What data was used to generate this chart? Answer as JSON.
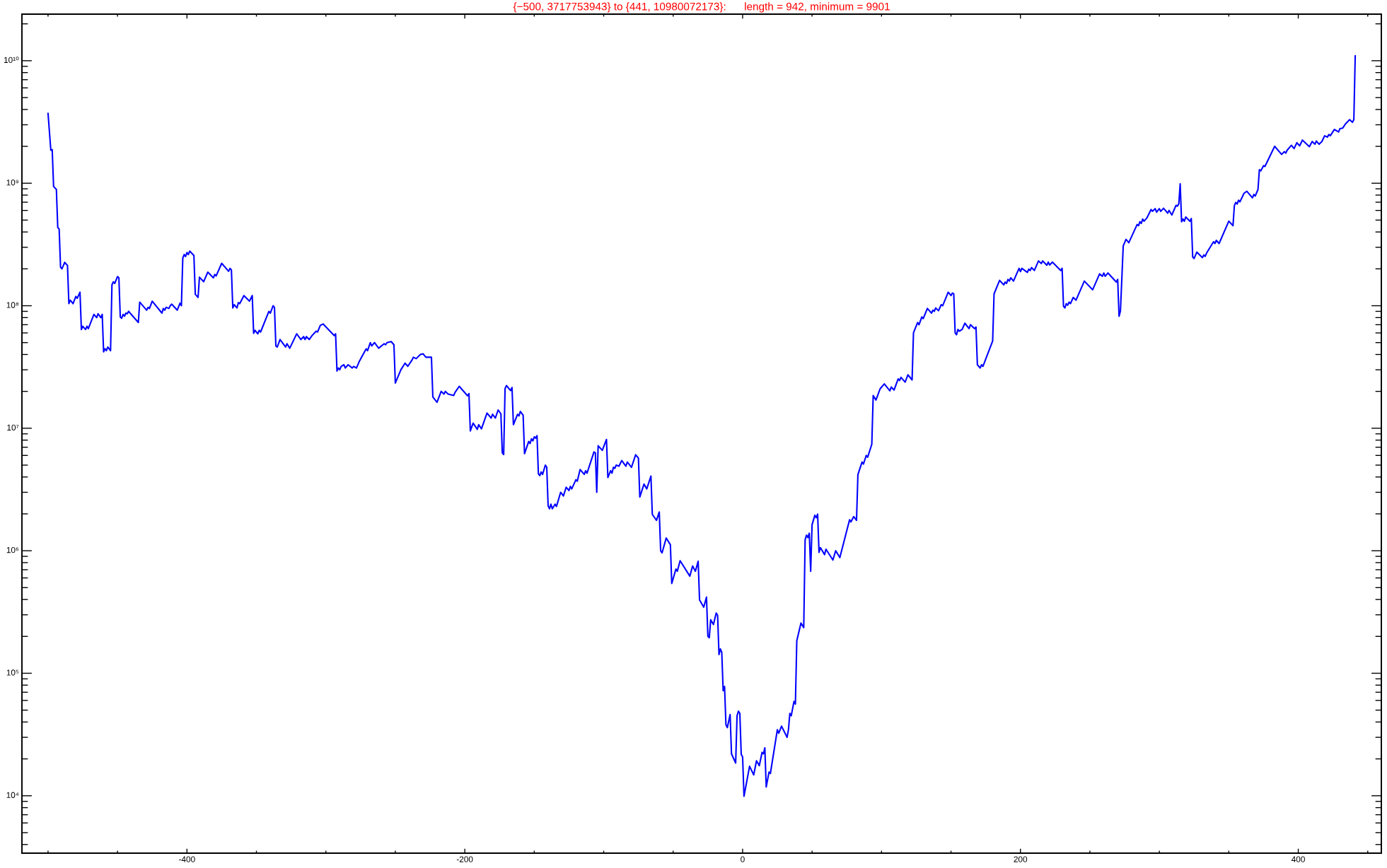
{
  "chart_data": {
    "type": "line",
    "title": "{−500, 3717753943} to {441, 10980072173}:      length = 942, minimum = 9901",
    "x": [
      -500,
      -498,
      -497,
      -496,
      -494,
      -493,
      -492,
      -491,
      -490,
      -488,
      -486,
      -485,
      -484,
      -482,
      -480,
      -479,
      -477,
      -476,
      -475,
      -473,
      -472,
      -471,
      -467,
      -465,
      -464,
      -462,
      -461,
      -460,
      -459,
      -458,
      -457,
      -455,
      -454,
      -453,
      -452,
      -450,
      -449,
      -448,
      -447,
      -446,
      -445,
      -444,
      -443,
      -442,
      -435,
      -434,
      -429,
      -428,
      -427,
      -425,
      -418,
      -417,
      -416,
      -415,
      -413,
      -412,
      -411,
      -407,
      -405,
      -404,
      -403,
      -402,
      -401,
      -400,
      -399,
      -398,
      -395,
      -394,
      -392,
      -391,
      -388,
      -385,
      -381,
      -380,
      -379,
      -375,
      -370,
      -369,
      -368,
      -367,
      -366,
      -364,
      -363,
      -362,
      -359,
      -355,
      -353,
      -352,
      -351,
      -349,
      -348,
      -347,
      -341,
      -340,
      -338,
      -337,
      -336,
      -335,
      -333,
      -329,
      -328,
      -326,
      -321,
      -318,
      -316,
      -315,
      -314,
      -312,
      -310,
      -307,
      -306,
      -304,
      -302,
      -294,
      -293,
      -292,
      -291,
      -290,
      -289,
      -287,
      -286,
      -284,
      -281,
      -280,
      -278,
      -276,
      -271,
      -270,
      -268,
      -267,
      -265,
      -262,
      -258,
      -257,
      -256,
      -253,
      -251,
      -250,
      -246,
      -243,
      -241,
      -238,
      -237,
      -235,
      -232,
      -230,
      -228,
      -224,
      -223,
      -220,
      -217,
      -215,
      -214,
      -212,
      -208,
      -207,
      -204,
      -198,
      -197,
      -196,
      -194,
      -191,
      -190,
      -188,
      -184,
      -181,
      -180,
      -178,
      -176,
      -174,
      -173,
      -172,
      -171,
      -170,
      -167,
      -166,
      -165,
      -162,
      -161,
      -160,
      -158,
      -157,
      -154,
      -153,
      -152,
      -151,
      -150,
      -149,
      -148,
      -147,
      -146,
      -145,
      -144,
      -142,
      -141,
      -140,
      -139,
      -138,
      -137,
      -135,
      -134,
      -131,
      -129,
      -127,
      -125,
      -124,
      -123,
      -120,
      -119,
      -117,
      -114,
      -113,
      -112,
      -107,
      -106,
      -105,
      -104,
      -101,
      -98,
      -97,
      -95,
      -94,
      -93,
      -92,
      -91,
      -89,
      -87,
      -84,
      -83,
      -80,
      -77,
      -75,
      -74,
      -71,
      -69,
      -66,
      -65,
      -62,
      -60,
      -59,
      -58,
      -55,
      -52,
      -51,
      -48,
      -47,
      -45,
      -38,
      -36,
      -34,
      -32,
      -31,
      -28,
      -26,
      -25,
      -24,
      -23,
      -21,
      -19,
      -18,
      -17,
      -16,
      -15,
      -14,
      -13,
      -12,
      -11,
      -9,
      -8,
      -5,
      -4,
      -3,
      -2,
      -1,
      0,
      1,
      5,
      8,
      10,
      12,
      14,
      15,
      16,
      17,
      19,
      20,
      25,
      26,
      28,
      32,
      33,
      34,
      35,
      37,
      38,
      39,
      42,
      44,
      45,
      46,
      47,
      48,
      49,
      50,
      52,
      53,
      54,
      55,
      56,
      59,
      60,
      65,
      67,
      70,
      77,
      78,
      80,
      82,
      83,
      86,
      87,
      89,
      90,
      93,
      94,
      96,
      99,
      102,
      106,
      107,
      109,
      112,
      113,
      114,
      117,
      119,
      122,
      123,
      126,
      127,
      129,
      130,
      133,
      136,
      137,
      138,
      139,
      141,
      143,
      144,
      148,
      150,
      151,
      152,
      153,
      154,
      155,
      156,
      158,
      160,
      163,
      164,
      167,
      168,
      169,
      171,
      172,
      173,
      180,
      181,
      185,
      188,
      189,
      190,
      191,
      192,
      193,
      195,
      199,
      200,
      201,
      205,
      206,
      207,
      208,
      210,
      213,
      215,
      216,
      219,
      220,
      221,
      223,
      229,
      230,
      231,
      232,
      233,
      234,
      235,
      236,
      238,
      240,
      246,
      252,
      257,
      259,
      260,
      261,
      263,
      269,
      270,
      271,
      272,
      274,
      276,
      278,
      284,
      285,
      286,
      287,
      288,
      289,
      291,
      294,
      295,
      297,
      298,
      300,
      301,
      303,
      306,
      307,
      309,
      312,
      313,
      314,
      315,
      316,
      317,
      318,
      319,
      322,
      323,
      324,
      325,
      327,
      331,
      332,
      333,
      334,
      339,
      340,
      341,
      343,
      350,
      353,
      354,
      355,
      356,
      357,
      358,
      361,
      363,
      367,
      368,
      369,
      371,
      372,
      373,
      375,
      376,
      383,
      388,
      390,
      391,
      392,
      395,
      397,
      399,
      401,
      403,
      408,
      410,
      412,
      413,
      415,
      417,
      419,
      421,
      422,
      423,
      426,
      429,
      430,
      432,
      434,
      437,
      439,
      440,
      441
    ],
    "values": [
      3717753943,
      1860000000.0,
      1880000000.0,
      940000000.0,
      890000000.0,
      435000000.0,
      423000000.0,
      207000000.0,
      200000000.0,
      226000000.0,
      213000000.0,
      104000000.0,
      111000000.0,
      104000000.0,
      119000000.0,
      115000000.0,
      129000000.0,
      64000000.0,
      68000000.0,
      64000000.0,
      68000000.0,
      65000000.0,
      85000000.0,
      80000000.0,
      86000000.0,
      80000000.0,
      85000000.0,
      42000000.0,
      44600000.0,
      43000000.0,
      46000000.0,
      43000000.0,
      148000000.0,
      157000000.0,
      152000000.0,
      173000000.0,
      169000000.0,
      81000000.0,
      79000000.0,
      85000000.0,
      82000000.0,
      87000000.0,
      86000000.0,
      90000000.0,
      73000000.0,
      107000000.0,
      92000000.0,
      97000000.0,
      95000000.0,
      109000000.0,
      87000000.0,
      95000000.0,
      92000000.0,
      97000000.0,
      95000000.0,
      100000000.0,
      103000000.0,
      92000000.0,
      105000000.0,
      100000000.0,
      245000000.0,
      262000000.0,
      252000000.0,
      272000000.0,
      262000000.0,
      279000000.0,
      257000000.0,
      124000000.0,
      117000000.0,
      171000000.0,
      157000000.0,
      188000000.0,
      169000000.0,
      180000000.0,
      175000000.0,
      222000000.0,
      191000000.0,
      202000000.0,
      196000000.0,
      96000000.0,
      102000000.0,
      96000000.0,
      106000000.0,
      104000000.0,
      121000000.0,
      109000000.0,
      121000000.0,
      59600000.0,
      63000000.0,
      59000000.0,
      63000000.0,
      61000000.0,
      90000000.0,
      87000000.0,
      100000000.0,
      97000000.0,
      47000000.0,
      46000000.0,
      53000000.0,
      46000000.0,
      49000000.0,
      45000000.0,
      59000000.0,
      53000000.0,
      56000000.0,
      53000000.0,
      56000000.0,
      53000000.0,
      57000000.0,
      62000000.0,
      61000000.0,
      69000000.0,
      71000000.0,
      57000000.0,
      59000000.0,
      29300000.0,
      31000000.0,
      30000000.0,
      32000000.0,
      33000000.0,
      31000000.0,
      33000000.0,
      31000000.0,
      32000000.0,
      31000000.0,
      35000000.0,
      44500000.0,
      43000000.0,
      50000000.0,
      47000000.0,
      50000000.0,
      45000000.0,
      49000000.0,
      48000000.0,
      50000000.0,
      51000000.0,
      48000000.0,
      23400000.0,
      30000000.0,
      34000000.0,
      32000000.0,
      36000000.0,
      38000000.0,
      37000000.0,
      40000000.0,
      40500000.0,
      38000000.0,
      38000000.0,
      18000000.0,
      16300000.0,
      20000000.0,
      19000000.0,
      20000000.0,
      19000000.0,
      18500000.0,
      19600000.0,
      22000000.0,
      18400000.0,
      19200000.0,
      9500000.0,
      11000000.0,
      9800000.0,
      10700000.0,
      9900000.0,
      13300000.0,
      12100000.0,
      13000000.0,
      12100000.0,
      14100000.0,
      13100000.0,
      6300000.0,
      6100000.0,
      21100000.0,
      22300000.0,
      20300000.0,
      21500000.0,
      10700000.0,
      13000000.0,
      12600000.0,
      13700000.0,
      12800000.0,
      6200000.0,
      7800000.0,
      7500000.0,
      8200000.0,
      7900000.0,
      8500000.0,
      8300000.0,
      8700000.0,
      4240000.0,
      4100000.0,
      4400000.0,
      4200000.0,
      5000000.0,
      4800000.0,
      2320000.0,
      2200000.0,
      2400000.0,
      2200000.0,
      2400000.0,
      2300000.0,
      3000000.0,
      2800000.0,
      3300000.0,
      3100000.0,
      3350000.0,
      3200000.0,
      3800000.0,
      3700000.0,
      4600000.0,
      4200000.0,
      4500000.0,
      4300000.0,
      6400000.0,
      6300000.0,
      3000000.0,
      7200000.0,
      6600000.0,
      8100000.0,
      3960000.0,
      4500000.0,
      4300000.0,
      4800000.0,
      4700000.0,
      5000000.0,
      4900000.0,
      5450000.0,
      4900000.0,
      5300000.0,
      4800000.0,
      6070000.0,
      5700000.0,
      2740000.0,
      3500000.0,
      3200000.0,
      4070000.0,
      1980000.0,
      1770000.0,
      2070000.0,
      1000000.0,
      960000.0,
      1270000.0,
      1120000.0,
      540000.0,
      710000.0,
      680000.0,
      830000.0,
      620000.0,
      750000.0,
      680000.0,
      820000.0,
      397000.0,
      346000.0,
      418000.0,
      200000.0,
      195000.0,
      273000.0,
      250000.0,
      310000.0,
      297000.0,
      142000.0,
      158000.0,
      148000.0,
      72000.0,
      78000.0,
      38000.0,
      36000.0,
      46000.0,
      22000.0,
      18500.0,
      45000.0,
      49000.0,
      47000.0,
      21800.0,
      20700.0,
      9901,
      17400.0,
      14800.0,
      19300.0,
      17600.0,
      22600.0,
      22000.0,
      24600.0,
      11800.0,
      15600.0,
      15200.0,
      34600.0,
      32400.0,
      37000.0,
      30000.0,
      34600.0,
      47000.0,
      45000.0,
      59000.0,
      56000.0,
      184000.0,
      257000.0,
      236000.0,
      1230000.0,
      1340000.0,
      1280000.0,
      1390000.0,
      680000.0,
      1630000.0,
      1950000.0,
      1860000.0,
      1990000.0,
      970000.0,
      1060000.0,
      930000.0,
      1030000.0,
      840000.0,
      1000000.0,
      880000.0,
      1790000.0,
      1720000.0,
      1900000.0,
      1770000.0,
      4190000.0,
      5300000.0,
      5100000.0,
      6000000.0,
      5800000.0,
      7400000.0,
      18500000.0,
      17000000.0,
      21000000.0,
      23000000.0,
      20200000.0,
      21700000.0,
      20500000.0,
      25300000.0,
      24500000.0,
      26000000.0,
      23800000.0,
      27300000.0,
      24800000.0,
      60000000.0,
      73000000.0,
      70000000.0,
      81000000.0,
      78500000.0,
      95000000.0,
      87000000.0,
      92000000.0,
      90000000.0,
      96000000.0,
      91000000.0,
      102000000.0,
      100000000.0,
      129000000.0,
      121000000.0,
      127000000.0,
      125000000.0,
      60000000.0,
      58000000.0,
      64000000.0,
      62000000.0,
      64000000.0,
      72000000.0,
      65000000.0,
      70000000.0,
      65000000.0,
      67000000.0,
      33000000.0,
      31000000.0,
      33000000.0,
      32000000.0,
      51500000.0,
      125000000.0,
      161000000.0,
      148000000.0,
      156000000.0,
      152000000.0,
      164000000.0,
      159000000.0,
      169000000.0,
      159000000.0,
      202000000.0,
      190000000.0,
      202000000.0,
      187000000.0,
      199000000.0,
      194000000.0,
      205000000.0,
      194000000.0,
      232000000.0,
      221000000.0,
      232000000.0,
      214000000.0,
      227000000.0,
      215000000.0,
      227000000.0,
      194000000.0,
      202000000.0,
      99000000.0,
      96000000.0,
      104000000.0,
      101000000.0,
      107000000.0,
      104000000.0,
      117000000.0,
      111000000.0,
      159000000.0,
      135000000.0,
      182000000.0,
      174000000.0,
      185000000.0,
      174000000.0,
      185000000.0,
      156000000.0,
      164000000.0,
      82000000.0,
      91000000.0,
      308000000.0,
      348000000.0,
      327000000.0,
      460000000.0,
      450000000.0,
      485000000.0,
      470000000.0,
      510000000.0,
      490000000.0,
      520000000.0,
      610000000.0,
      590000000.0,
      620000000.0,
      580000000.0,
      620000000.0,
      590000000.0,
      625000000.0,
      570000000.0,
      600000000.0,
      550000000.0,
      660000000.0,
      650000000.0,
      680000000.0,
      990000000.0,
      485000000.0,
      510000000.0,
      490000000.0,
      530000000.0,
      490000000.0,
      515000000.0,
      250000000.0,
      243000000.0,
      274000000.0,
      247000000.0,
      260000000.0,
      253000000.0,
      269000000.0,
      333000000.0,
      322000000.0,
      342000000.0,
      322000000.0,
      490000000.0,
      450000000.0,
      656000000.0,
      697000000.0,
      676000000.0,
      727000000.0,
      705000000.0,
      830000000.0,
      860000000.0,
      760000000.0,
      810000000.0,
      785000000.0,
      890000000.0,
      1290000000.0,
      1260000000.0,
      1390000000.0,
      1370000000.0,
      2000000000.0,
      1720000000.0,
      1810000000.0,
      1760000000.0,
      1860000000.0,
      2040000000.0,
      1920000000.0,
      2140000000.0,
      2020000000.0,
      2250000000.0,
      1990000000.0,
      2190000000.0,
      2080000000.0,
      2210000000.0,
      2080000000.0,
      2190000000.0,
      2440000000.0,
      2380000000.0,
      2500000000.0,
      2440000000.0,
      2750000000.0,
      2620000000.0,
      2790000000.0,
      2820000000.0,
      3050000000.0,
      3300000000.0,
      3140000000.0,
      3300000000.0,
      10980072173
    ],
    "color": "#0000ff",
    "line_style": "solid",
    "log": "y",
    "xlim": [
      -518.8,
      459.8
    ],
    "ylim": [
      3400,
      24000000000.0
    ],
    "xticks": [
      {
        "value": -500,
        "label": null
      },
      {
        "value": -450,
        "label": null
      },
      -400,
      {
        "value": -350,
        "label": null
      },
      {
        "value": -300,
        "label": null
      },
      {
        "value": -250,
        "label": null
      },
      -200,
      {
        "value": -150,
        "label": null
      },
      {
        "value": -100,
        "label": null
      },
      {
        "value": -50,
        "label": null
      },
      0,
      {
        "value": 50,
        "label": null
      },
      {
        "value": 100,
        "label": null
      },
      {
        "value": 150,
        "label": null
      },
      200,
      {
        "value": 250,
        "label": null
      },
      {
        "value": 300,
        "label": null
      },
      {
        "value": 350,
        "label": null
      },
      400,
      {
        "value": 450,
        "label": null
      }
    ],
    "yticks": [
      {
        "value": 4000,
        "label": null
      },
      {
        "value": 5000,
        "label": null
      },
      {
        "value": 6000,
        "label": null
      },
      {
        "value": 7000,
        "label": null
      },
      {
        "value": 8000,
        "label": null
      },
      {
        "value": 9000,
        "label": null
      },
      {
        "value": 10000,
        "label": "10⁴"
      },
      {
        "value": 20000,
        "label": null
      },
      {
        "value": 30000,
        "label": null
      },
      {
        "value": 40000,
        "label": null
      },
      {
        "value": 50000,
        "label": null
      },
      {
        "value": 60000,
        "label": null
      },
      {
        "value": 70000,
        "label": null
      },
      {
        "value": 80000,
        "label": null
      },
      {
        "value": 90000,
        "label": null
      },
      {
        "value": 100000,
        "label": "10⁵"
      },
      {
        "value": 200000,
        "label": null
      },
      {
        "value": 300000,
        "label": null
      },
      {
        "value": 400000,
        "label": null
      },
      {
        "value": 500000,
        "label": null
      },
      {
        "value": 600000,
        "label": null
      },
      {
        "value": 700000,
        "label": null
      },
      {
        "value": 800000,
        "label": null
      },
      {
        "value": 900000,
        "label": null
      },
      {
        "value": 1000000,
        "label": "10⁶"
      },
      {
        "value": 2000000,
        "label": null
      },
      {
        "value": 3000000,
        "label": null
      },
      {
        "value": 4000000,
        "label": null
      },
      {
        "value": 5000000,
        "label": null
      },
      {
        "value": 6000000,
        "label": null
      },
      {
        "value": 7000000,
        "label": null
      },
      {
        "value": 8000000,
        "label": null
      },
      {
        "value": 9000000,
        "label": null
      },
      {
        "value": 10000000,
        "label": "10⁷"
      },
      {
        "value": 20000000,
        "label": null
      },
      {
        "value": 30000000,
        "label": null
      },
      {
        "value": 40000000,
        "label": null
      },
      {
        "value": 50000000,
        "label": null
      },
      {
        "value": 60000000,
        "label": null
      },
      {
        "value": 70000000,
        "label": null
      },
      {
        "value": 80000000,
        "label": null
      },
      {
        "value": 90000000,
        "label": null
      },
      {
        "value": 100000000,
        "label": "10⁸"
      },
      {
        "value": 200000000,
        "label": null
      },
      {
        "value": 300000000,
        "label": null
      },
      {
        "value": 400000000,
        "label": null
      },
      {
        "value": 500000000,
        "label": null
      },
      {
        "value": 600000000,
        "label": null
      },
      {
        "value": 700000000,
        "label": null
      },
      {
        "value": 800000000,
        "label": null
      },
      {
        "value": 900000000,
        "label": null
      },
      {
        "value": 1000000000,
        "label": "10⁹"
      },
      {
        "value": 2000000000,
        "label": null
      },
      {
        "value": 3000000000,
        "label": null
      },
      {
        "value": 4000000000,
        "label": null
      },
      {
        "value": 5000000000,
        "label": null
      },
      {
        "value": 6000000000,
        "label": null
      },
      {
        "value": 7000000000,
        "label": null
      },
      {
        "value": 8000000000,
        "label": null
      },
      {
        "value": 9000000000,
        "label": null
      },
      {
        "value": 10000000000,
        "label": "10¹⁰"
      },
      {
        "value": 20000000000,
        "label": null
      }
    ]
  }
}
